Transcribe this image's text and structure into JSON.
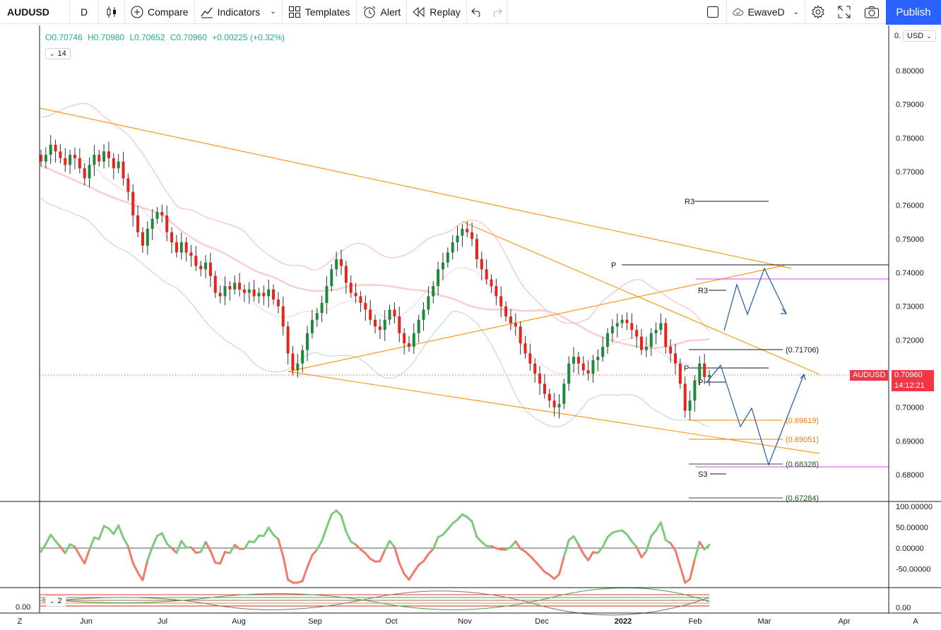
{
  "toolbar": {
    "symbol": "AUDUSD",
    "interval": "D",
    "compare": "Compare",
    "indicators": "Indicators",
    "templates": "Templates",
    "alert": "Alert",
    "replay": "Replay",
    "layout_name": "EwaveD",
    "publish": "Publish"
  },
  "legend": {
    "open": "O0.70746",
    "high": "H0.70980",
    "low": "L0.70652",
    "close": "C0.70960",
    "change": "+0.00225 (+0.32%)",
    "collapse_count": "14"
  },
  "currency": "USD",
  "price_axis": {
    "top_label": "0.",
    "ticks": [
      "0.80000",
      "0.79000",
      "0.78000",
      "0.77000",
      "0.76000",
      "0.75000",
      "0.74000",
      "0.73000",
      "0.72000",
      "0.71000",
      "0.70000",
      "0.69000",
      "0.68000"
    ],
    "symbol_tag": "AUDUSD",
    "price_tag": "0.70960",
    "countdown": "14:12:21"
  },
  "osc_axis": {
    "ticks": [
      "100.00000",
      "50.00000",
      "0.00000",
      "-50.00000"
    ]
  },
  "osc2": {
    "count": "2",
    "left_value": "0.00",
    "right_value": "0.00"
  },
  "time_axis": {
    "ticks": [
      "Jun",
      "Jul",
      "Aug",
      "Sep",
      "Oct",
      "Nov",
      "Dec",
      "2022",
      "Feb",
      "Mar",
      "Apr"
    ],
    "left": "Z",
    "right": "A"
  },
  "annotations": {
    "r3_top": "R3",
    "pivot": "P",
    "r3_low": "R3",
    "p_small_1": "P",
    "p_small_2": "P",
    "s3": "S3",
    "fib_1": "(0.71706)",
    "fib_2": "(0.69619)",
    "fib_3": "(0.69051)",
    "fib_4": "(0.68328)",
    "fib_5": "(0.67284)"
  },
  "chart_data": {
    "type": "candlestick",
    "symbol": "AUDUSD",
    "interval": "D",
    "last_close": 0.7096,
    "ylim": [
      0.672,
      0.804
    ],
    "closes": [
      0.773,
      0.775,
      0.778,
      0.776,
      0.774,
      0.772,
      0.775,
      0.774,
      0.771,
      0.768,
      0.772,
      0.775,
      0.773,
      0.776,
      0.774,
      0.771,
      0.773,
      0.768,
      0.764,
      0.757,
      0.752,
      0.748,
      0.753,
      0.756,
      0.758,
      0.757,
      0.752,
      0.749,
      0.746,
      0.749,
      0.746,
      0.745,
      0.742,
      0.741,
      0.743,
      0.739,
      0.734,
      0.733,
      0.736,
      0.735,
      0.737,
      0.735,
      0.734,
      0.735,
      0.733,
      0.734,
      0.733,
      0.735,
      0.732,
      0.73,
      0.724,
      0.716,
      0.711,
      0.713,
      0.717,
      0.722,
      0.726,
      0.728,
      0.731,
      0.736,
      0.741,
      0.744,
      0.742,
      0.737,
      0.734,
      0.733,
      0.731,
      0.729,
      0.726,
      0.724,
      0.723,
      0.726,
      0.729,
      0.727,
      0.722,
      0.719,
      0.718,
      0.722,
      0.726,
      0.729,
      0.733,
      0.736,
      0.741,
      0.743,
      0.746,
      0.749,
      0.751,
      0.753,
      0.752,
      0.75,
      0.744,
      0.741,
      0.738,
      0.736,
      0.733,
      0.73,
      0.727,
      0.725,
      0.724,
      0.719,
      0.716,
      0.713,
      0.71,
      0.707,
      0.704,
      0.702,
      0.7,
      0.701,
      0.707,
      0.713,
      0.715,
      0.713,
      0.711,
      0.71,
      0.714,
      0.715,
      0.718,
      0.722,
      0.724,
      0.725,
      0.726,
      0.725,
      0.723,
      0.721,
      0.717,
      0.718,
      0.722,
      0.723,
      0.725,
      0.718,
      0.716,
      0.713,
      0.707,
      0.699,
      0.702,
      0.708,
      0.713,
      0.709,
      0.7096
    ]
  }
}
